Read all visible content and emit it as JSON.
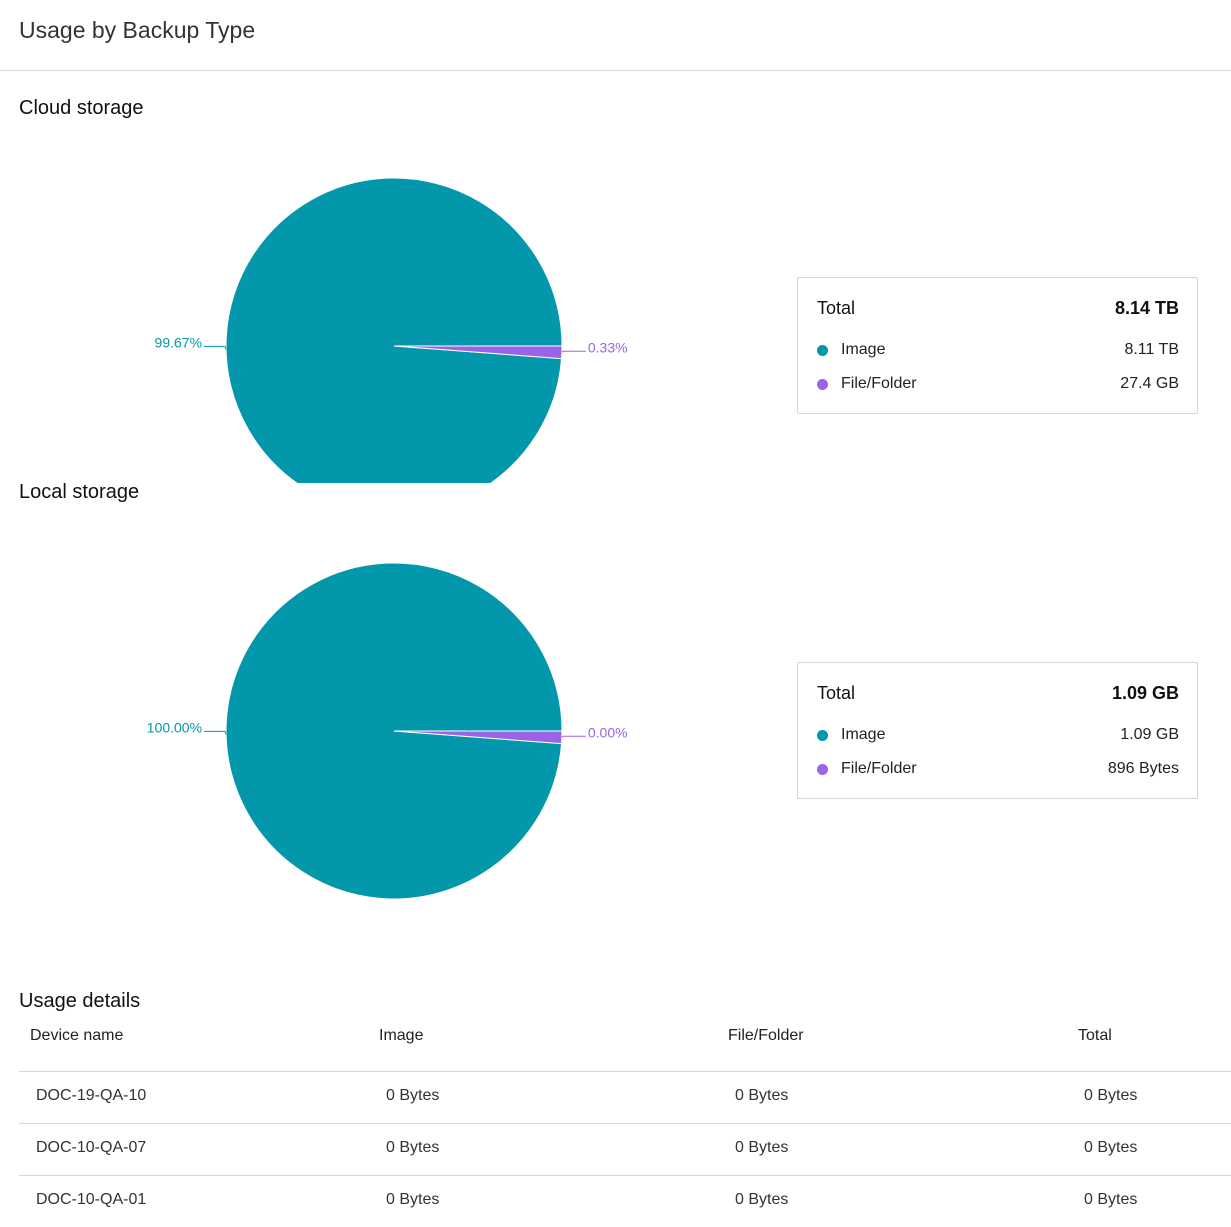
{
  "header": {
    "title": "Usage by Backup Type"
  },
  "colors": {
    "image": "#0397ab",
    "file_folder": "#9b63e6"
  },
  "chart_data": [
    {
      "type": "pie",
      "title": "Cloud storage",
      "slices": [
        {
          "name": "Image",
          "percent": 99.67,
          "label": "99.67%"
        },
        {
          "name": "File/Folder",
          "percent": 0.33,
          "label": "0.33%"
        }
      ],
      "legend": {
        "total_label": "Total",
        "total_value": "8.14 TB",
        "items": [
          {
            "name": "Image",
            "value": "8.11 TB"
          },
          {
            "name": "File/Folder",
            "value": "27.4 GB"
          }
        ]
      }
    },
    {
      "type": "pie",
      "title": "Local storage",
      "slices": [
        {
          "name": "Image",
          "percent": 100.0,
          "label": "100.00%"
        },
        {
          "name": "File/Folder",
          "percent": 0.0,
          "label": "0.00%"
        }
      ],
      "legend": {
        "total_label": "Total",
        "total_value": "1.09 GB",
        "items": [
          {
            "name": "Image",
            "value": "1.09 GB"
          },
          {
            "name": "File/Folder",
            "value": "896 Bytes"
          }
        ]
      }
    }
  ],
  "usage_details": {
    "title": "Usage details",
    "columns": [
      "Device name",
      "Image",
      "File/Folder",
      "Total"
    ],
    "rows": [
      [
        "DOC-19-QA-10",
        "0 Bytes",
        "0 Bytes",
        "0 Bytes"
      ],
      [
        "DOC-10-QA-07",
        "0 Bytes",
        "0 Bytes",
        "0 Bytes"
      ],
      [
        "DOC-10-QA-01",
        "0 Bytes",
        "0 Bytes",
        "0 Bytes"
      ]
    ]
  }
}
